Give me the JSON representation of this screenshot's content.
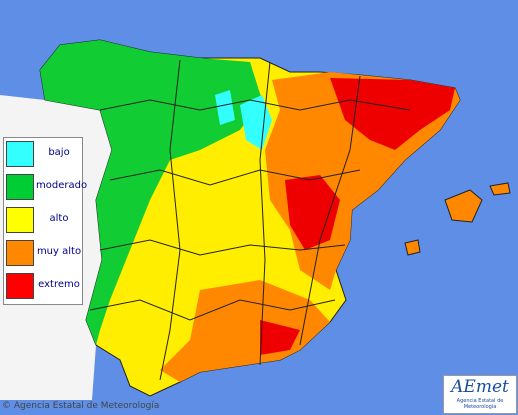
{
  "legend": {
    "items": [
      {
        "label": "bajo",
        "color": "#33ffff"
      },
      {
        "label": "moderado",
        "color": "#00cc33"
      },
      {
        "label": "alto",
        "color": "#ffff00"
      },
      {
        "label": "muy alto",
        "color": "#ff8800"
      },
      {
        "label": "extremo",
        "color": "#ff0000"
      }
    ]
  },
  "footer": {
    "copyright": "© Agencia Estatal de Meteorología"
  },
  "logo": {
    "title": "AEmet",
    "subtitle": "Agencia Estatal de Meteorología"
  }
}
